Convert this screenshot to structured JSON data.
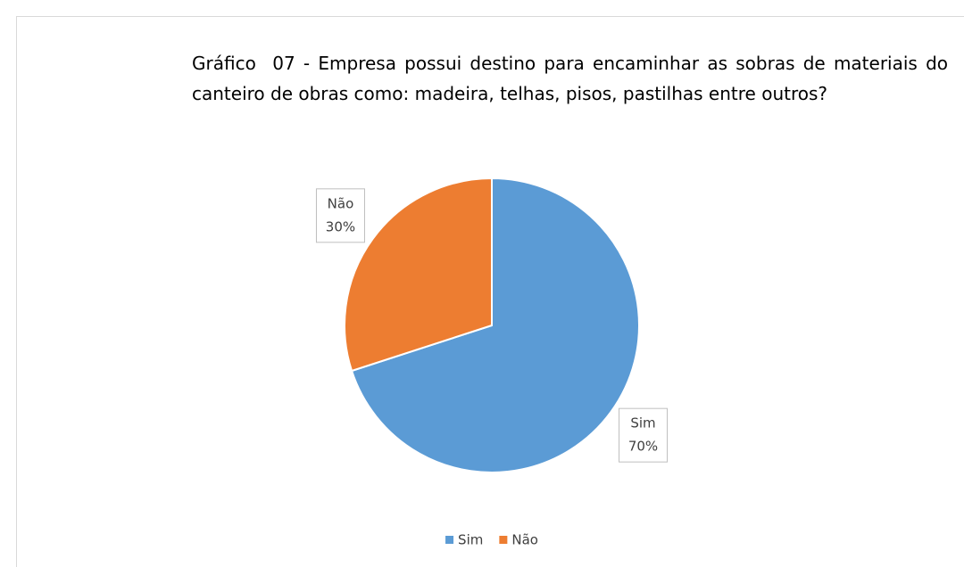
{
  "chart_data": {
    "type": "pie",
    "title": "Gráfico  07 - Empresa possui destino para encaminhar as sobras de materiais do canteiro de obras como: madeira, telhas, pisos, pastilhas entre outros?",
    "categories": [
      "Sim",
      "Não"
    ],
    "values": [
      70,
      30
    ],
    "value_labels": [
      "70%",
      "30%"
    ],
    "colors": [
      "#5b9bd5",
      "#ed7d31"
    ],
    "legend": "bottom"
  }
}
